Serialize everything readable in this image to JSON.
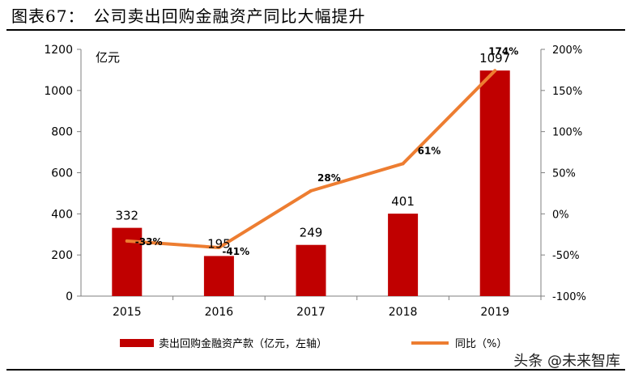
{
  "title": "图表67：　公司卖出回购金融资产同比大幅提升",
  "watermark": "头条 @未来智库",
  "chart_data": {
    "type": "bar",
    "categories": [
      "2015",
      "2016",
      "2017",
      "2018",
      "2019"
    ],
    "series": [
      {
        "name": "卖出回购金融资产款（亿元，左轴）",
        "type": "bar",
        "axis": "left",
        "values": [
          332,
          195,
          249,
          401,
          1097
        ],
        "labels": [
          "332",
          "195",
          "249",
          "401",
          "1097"
        ],
        "color": "#c00000"
      },
      {
        "name": "同比（%）",
        "type": "line",
        "axis": "right",
        "values": [
          -33,
          -41,
          28,
          61,
          174
        ],
        "labels": [
          "-33%",
          "-41%",
          "28%",
          "61%",
          "174%"
        ],
        "color": "#ed7d31"
      }
    ],
    "y_left": {
      "unit": "亿元",
      "ylim": [
        0,
        1200
      ],
      "ticks": [
        "0",
        "200",
        "400",
        "600",
        "800",
        "1000",
        "1200"
      ]
    },
    "y_right": {
      "ylim": [
        -100,
        200
      ],
      "ticks": [
        "-100%",
        "-50%",
        "0%",
        "50%",
        "100%",
        "150%",
        "200%"
      ]
    },
    "grid": false,
    "legend_position": "bottom"
  }
}
